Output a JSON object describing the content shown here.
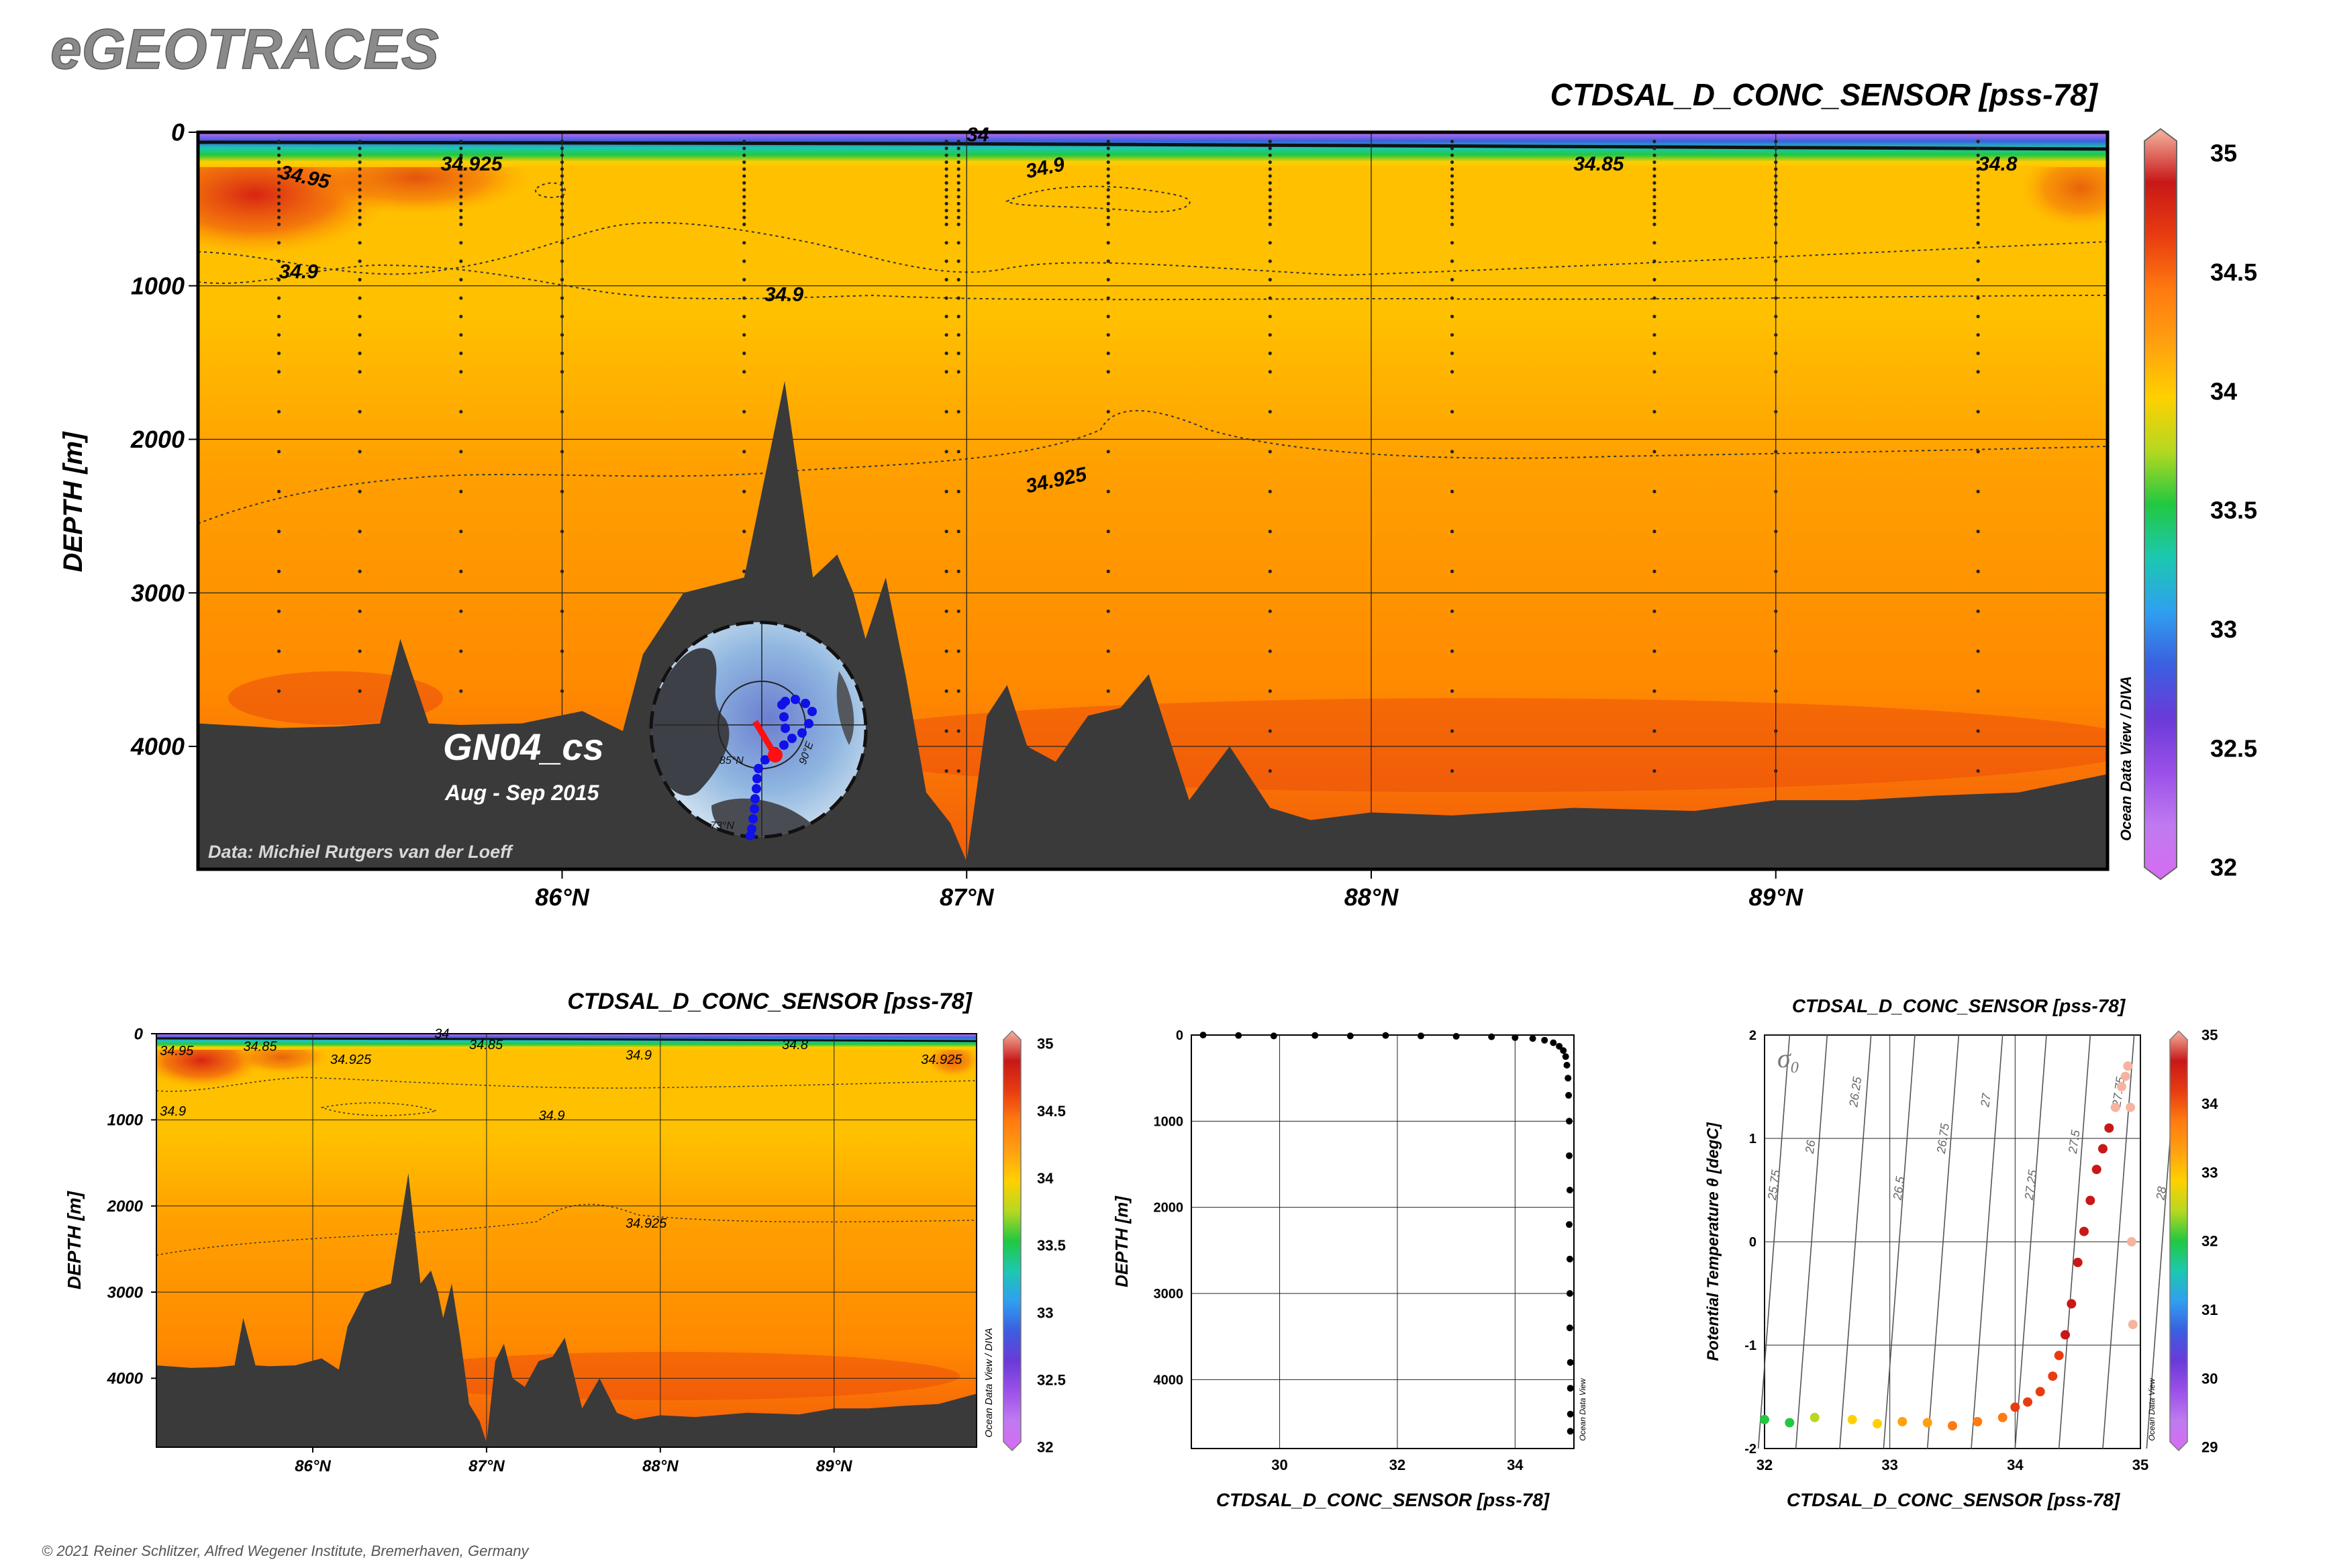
{
  "brand": "eGEOTRACES",
  "footer": "© 2021 Reiner Schlitzer, Alfred Wegener Institute, Bremerhaven, Germany",
  "colors": {
    "colorbar": [
      "#d56cf2",
      "#c07af0",
      "#9a50e8",
      "#6a3ad8",
      "#3b5fe0",
      "#2fa0f0",
      "#1cc8b0",
      "#22c840",
      "#b6d820",
      "#ffd000",
      "#ffa010",
      "#ff7a10",
      "#e83c10",
      "#c81818",
      "#f4b4a0"
    ],
    "field_shallow": "#ffc000",
    "field_mid": "#ffa000",
    "field_deep": "#ff8a00",
    "field_bottom": "#f25a0a",
    "bathymetry": "#3a3a3a"
  },
  "main_section": {
    "title": "CTDSAL_D_CONC_SENSOR [pss-78]",
    "ylabel": "DEPTH [m]",
    "y_ticks": [
      "0",
      "1000",
      "2000",
      "3000",
      "4000"
    ],
    "x_ticks": [
      "86°N",
      "87°N",
      "88°N",
      "89°N"
    ],
    "colorbar_ticks": [
      "35",
      "34.5",
      "34",
      "33.5",
      "33",
      "32.5",
      "32"
    ],
    "colorbar_side_label": "Ocean Data View / DIVA",
    "contour_labels": [
      "34.95",
      "34.925",
      "34.9",
      "34.9",
      "34.9",
      "34.85",
      "34.8",
      "34.925",
      "34"
    ],
    "cruise": "GN04_cs",
    "period": "Aug - Sep 2015",
    "credit": "Data: Michiel Rutgers van der Loeff",
    "inset_map_labels": [
      "85°N",
      "90°E",
      "73°N"
    ]
  },
  "small_section": {
    "title": "CTDSAL_D_CONC_SENSOR [pss-78]",
    "ylabel": "DEPTH [m]",
    "y_ticks": [
      "0",
      "1000",
      "2000",
      "3000",
      "4000"
    ],
    "x_ticks": [
      "86°N",
      "87°N",
      "88°N",
      "89°N"
    ],
    "colorbar_ticks": [
      "35",
      "34.5",
      "34",
      "33.5",
      "33",
      "32.5",
      "32"
    ],
    "colorbar_side_label": "Ocean Data View / DIVA",
    "contour_labels": [
      "34.95",
      "34.85",
      "34.925",
      "34.85",
      "34.9",
      "34.8",
      "34.925",
      "34.9",
      "34.9",
      "34.925",
      "34"
    ]
  },
  "profile": {
    "xlabel": "CTDSAL_D_CONC_SENSOR [pss-78]",
    "ylabel": "DEPTH [m]",
    "x_ticks": [
      "30",
      "32",
      "34"
    ],
    "y_ticks": [
      "0",
      "1000",
      "2000",
      "3000",
      "4000"
    ],
    "side_label": "Ocean Data View"
  },
  "ts_plot": {
    "title": "CTDSAL_D_CONC_SENSOR [pss-78]",
    "xlabel": "CTDSAL_D_CONC_SENSOR [pss-78]",
    "ylabel": "Potential Temperature θ [degC]",
    "x_ticks": [
      "32",
      "33",
      "34",
      "35"
    ],
    "y_ticks": [
      "2",
      "1",
      "0",
      "-1",
      "-2"
    ],
    "sigma_symbol": "σ",
    "sigma_sub": "0",
    "isopycnal_labels": [
      "25.75",
      "26",
      "26.25",
      "26.5",
      "26.75",
      "27",
      "27.25",
      "27.5",
      "27.75",
      "28"
    ],
    "colorbar_ticks": [
      "35",
      "34",
      "33",
      "32",
      "31",
      "30",
      "29"
    ],
    "side_label": "Ocean Data View"
  },
  "chart_data": [
    {
      "type": "heatmap",
      "title": "CTDSAL_D_CONC_SENSOR [pss-78]",
      "xlabel": "",
      "ylabel": "DEPTH [m]",
      "xlim": [
        85.1,
        89.82
      ],
      "ylim": [
        4800,
        0
      ],
      "colorbar_range": [
        32,
        35
      ],
      "stations_lat": [
        85.3,
        85.5,
        85.75,
        86.0,
        86.45,
        86.95,
        86.98,
        87.35,
        87.75,
        88.2,
        88.7,
        89.0,
        89.5
      ],
      "bathymetry": {
        "x": [
          85.1,
          85.3,
          85.45,
          85.55,
          85.6,
          85.67,
          85.75,
          85.9,
          86.05,
          86.15,
          86.2,
          86.3,
          86.45,
          86.55,
          86.62,
          86.68,
          86.72,
          86.75,
          86.8,
          86.85,
          86.9,
          86.96,
          87.0,
          87.05,
          87.1,
          87.15,
          87.22,
          87.3,
          87.38,
          87.45,
          87.55,
          87.65,
          87.75,
          87.85,
          88.0,
          88.2,
          88.5,
          88.8,
          89.0,
          89.2,
          89.4,
          89.6,
          89.82
        ],
        "depth": [
          3850,
          3880,
          3870,
          3850,
          3300,
          3850,
          3860,
          3850,
          3770,
          3900,
          3400,
          3000,
          2900,
          1620,
          2900,
          2750,
          3000,
          3300,
          2900,
          3550,
          4300,
          4500,
          4750,
          3800,
          3600,
          4000,
          4100,
          3800,
          3750,
          3530,
          4350,
          4000,
          4400,
          4480,
          4430,
          4450,
          4400,
          4420,
          4350,
          4350,
          4320,
          4300,
          4180
        ]
      },
      "contours": [
        {
          "level": 34.95,
          "label_at": [
            85.3,
            300
          ]
        },
        {
          "level": 34.925,
          "label_at": [
            85.7,
            250
          ]
        },
        {
          "level": 34.9,
          "label_at": [
            85.3,
            950
          ]
        },
        {
          "level": 34.9,
          "label_at": [
            86.5,
            1100
          ]
        },
        {
          "level": 34.9,
          "label_at": [
            87.15,
            300
          ]
        },
        {
          "level": 34.85,
          "label_at": [
            88.5,
            250
          ]
        },
        {
          "level": 34.8,
          "label_at": [
            89.5,
            250
          ]
        },
        {
          "level": 34.925,
          "label_at": [
            87.15,
            2350
          ]
        },
        {
          "level": 34,
          "label_at": [
            87.0,
            60
          ]
        }
      ]
    },
    {
      "type": "heatmap",
      "title": "CTDSAL_D_CONC_SENSOR [pss-78]",
      "xlabel": "",
      "ylabel": "DEPTH [m]",
      "xlim": [
        85.1,
        89.82
      ],
      "ylim": [
        4800,
        0
      ],
      "colorbar_range": [
        32,
        35
      ]
    },
    {
      "type": "scatter",
      "title": "",
      "xlabel": "CTDSAL_D_CONC_SENSOR [pss-78]",
      "ylabel": "DEPTH [m]",
      "xlim": [
        28.5,
        35.0
      ],
      "ylim": [
        4800,
        0
      ],
      "x": [
        28.7,
        29.3,
        29.9,
        30.6,
        31.2,
        31.8,
        32.4,
        33.0,
        33.6,
        34.0,
        34.3,
        34.5,
        34.65,
        34.75,
        34.82,
        34.86,
        34.88,
        34.9,
        34.91,
        34.92,
        34.92,
        34.93,
        34.92,
        34.93,
        34.93,
        34.93,
        34.94,
        34.94,
        34.94,
        34.94
      ],
      "y": [
        0,
        5,
        10,
        5,
        10,
        5,
        10,
        15,
        20,
        30,
        40,
        60,
        90,
        130,
        180,
        250,
        350,
        500,
        700,
        1000,
        1400,
        1800,
        2200,
        2600,
        3000,
        3400,
        3800,
        4100,
        4400,
        4600
      ]
    },
    {
      "type": "scatter",
      "title": "CTDSAL_D_CONC_SENSOR [pss-78]",
      "xlabel": "CTDSAL_D_CONC_SENSOR [pss-78]",
      "ylabel": "Potential Temperature θ [degC]",
      "xlim": [
        32,
        35
      ],
      "ylim": [
        -2,
        2
      ],
      "colorbar_range": [
        29,
        35
      ],
      "x": [
        32.0,
        32.2,
        32.4,
        32.7,
        32.9,
        33.1,
        33.3,
        33.5,
        33.7,
        33.9,
        34.0,
        34.1,
        34.2,
        34.3,
        34.35,
        34.4,
        34.45,
        34.5,
        34.55,
        34.6,
        34.65,
        34.7,
        34.75,
        34.8,
        34.85,
        34.88,
        34.9,
        34.92,
        34.93,
        34.94
      ],
      "y": [
        -1.72,
        -1.75,
        -1.7,
        -1.72,
        -1.76,
        -1.74,
        -1.75,
        -1.78,
        -1.74,
        -1.7,
        -1.6,
        -1.55,
        -1.45,
        -1.3,
        -1.1,
        -0.9,
        -0.6,
        -0.2,
        0.1,
        0.4,
        0.7,
        0.9,
        1.1,
        1.3,
        1.5,
        1.6,
        1.7,
        1.3,
        0.0,
        -0.8
      ]
    }
  ]
}
